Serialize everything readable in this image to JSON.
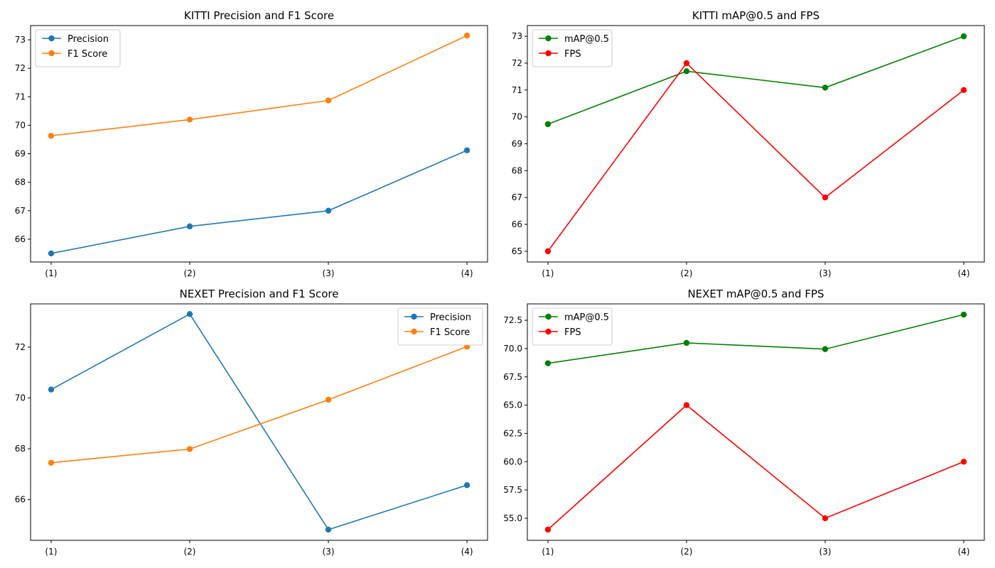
{
  "chart_data": [
    {
      "type": "line",
      "title": "KITTI Precision and F1 Score",
      "categories": [
        "(1)",
        "(2)",
        "(3)",
        "(4)"
      ],
      "ylim": [
        65.2,
        73.5
      ],
      "yticks": [
        66,
        67,
        68,
        69,
        70,
        71,
        72,
        73
      ],
      "ytick_labels": [
        "66",
        "67",
        "68",
        "69",
        "70",
        "71",
        "72",
        "73"
      ],
      "legend_position": "top-left",
      "series": [
        {
          "name": "Precision",
          "color": "#1f77b4",
          "values": [
            65.5,
            66.45,
            67.0,
            69.12
          ]
        },
        {
          "name": "F1 Score",
          "color": "#ff7f0e",
          "values": [
            69.63,
            70.2,
            70.87,
            73.15
          ]
        }
      ]
    },
    {
      "type": "line",
      "title": "KITTI mAP@0.5 and FPS",
      "categories": [
        "(1)",
        "(2)",
        "(3)",
        "(4)"
      ],
      "ylim": [
        64.6,
        73.4
      ],
      "yticks": [
        65,
        66,
        67,
        68,
        69,
        70,
        71,
        72,
        73
      ],
      "ytick_labels": [
        "65",
        "66",
        "67",
        "68",
        "69",
        "70",
        "71",
        "72",
        "73"
      ],
      "legend_position": "top-left",
      "series": [
        {
          "name": "mAP@0.5",
          "color": "#008000",
          "values": [
            69.73,
            71.7,
            71.09,
            73.0
          ]
        },
        {
          "name": "FPS",
          "color": "#ff0000",
          "values": [
            65,
            72,
            67,
            71
          ]
        }
      ]
    },
    {
      "type": "line",
      "title": "NEXET Precision and F1 Score",
      "categories": [
        "(1)",
        "(2)",
        "(3)",
        "(4)"
      ],
      "ylim": [
        64.4,
        73.7
      ],
      "yticks": [
        66,
        68,
        70,
        72
      ],
      "ytick_labels": [
        "66",
        "68",
        "70",
        "72"
      ],
      "legend_position": "top-right",
      "series": [
        {
          "name": "Precision",
          "color": "#1f77b4",
          "values": [
            70.33,
            73.3,
            64.82,
            66.57
          ]
        },
        {
          "name": "F1 Score",
          "color": "#ff7f0e",
          "values": [
            67.45,
            67.99,
            69.93,
            72.02
          ]
        }
      ]
    },
    {
      "type": "line",
      "title": "NEXET mAP@0.5 and FPS",
      "categories": [
        "(1)",
        "(2)",
        "(3)",
        "(4)"
      ],
      "ylim": [
        53.05,
        73.95
      ],
      "yticks": [
        55.0,
        57.5,
        60.0,
        62.5,
        65.0,
        67.5,
        70.0,
        72.5
      ],
      "ytick_labels": [
        "55.0",
        "57.5",
        "60.0",
        "62.5",
        "65.0",
        "67.5",
        "70.0",
        "72.5"
      ],
      "legend_position": "top-left",
      "series": [
        {
          "name": "mAP@0.5",
          "color": "#008000",
          "values": [
            68.7,
            70.5,
            69.95,
            73.0
          ]
        },
        {
          "name": "FPS",
          "color": "#ff0000",
          "values": [
            54,
            65,
            55,
            60
          ]
        }
      ]
    }
  ]
}
